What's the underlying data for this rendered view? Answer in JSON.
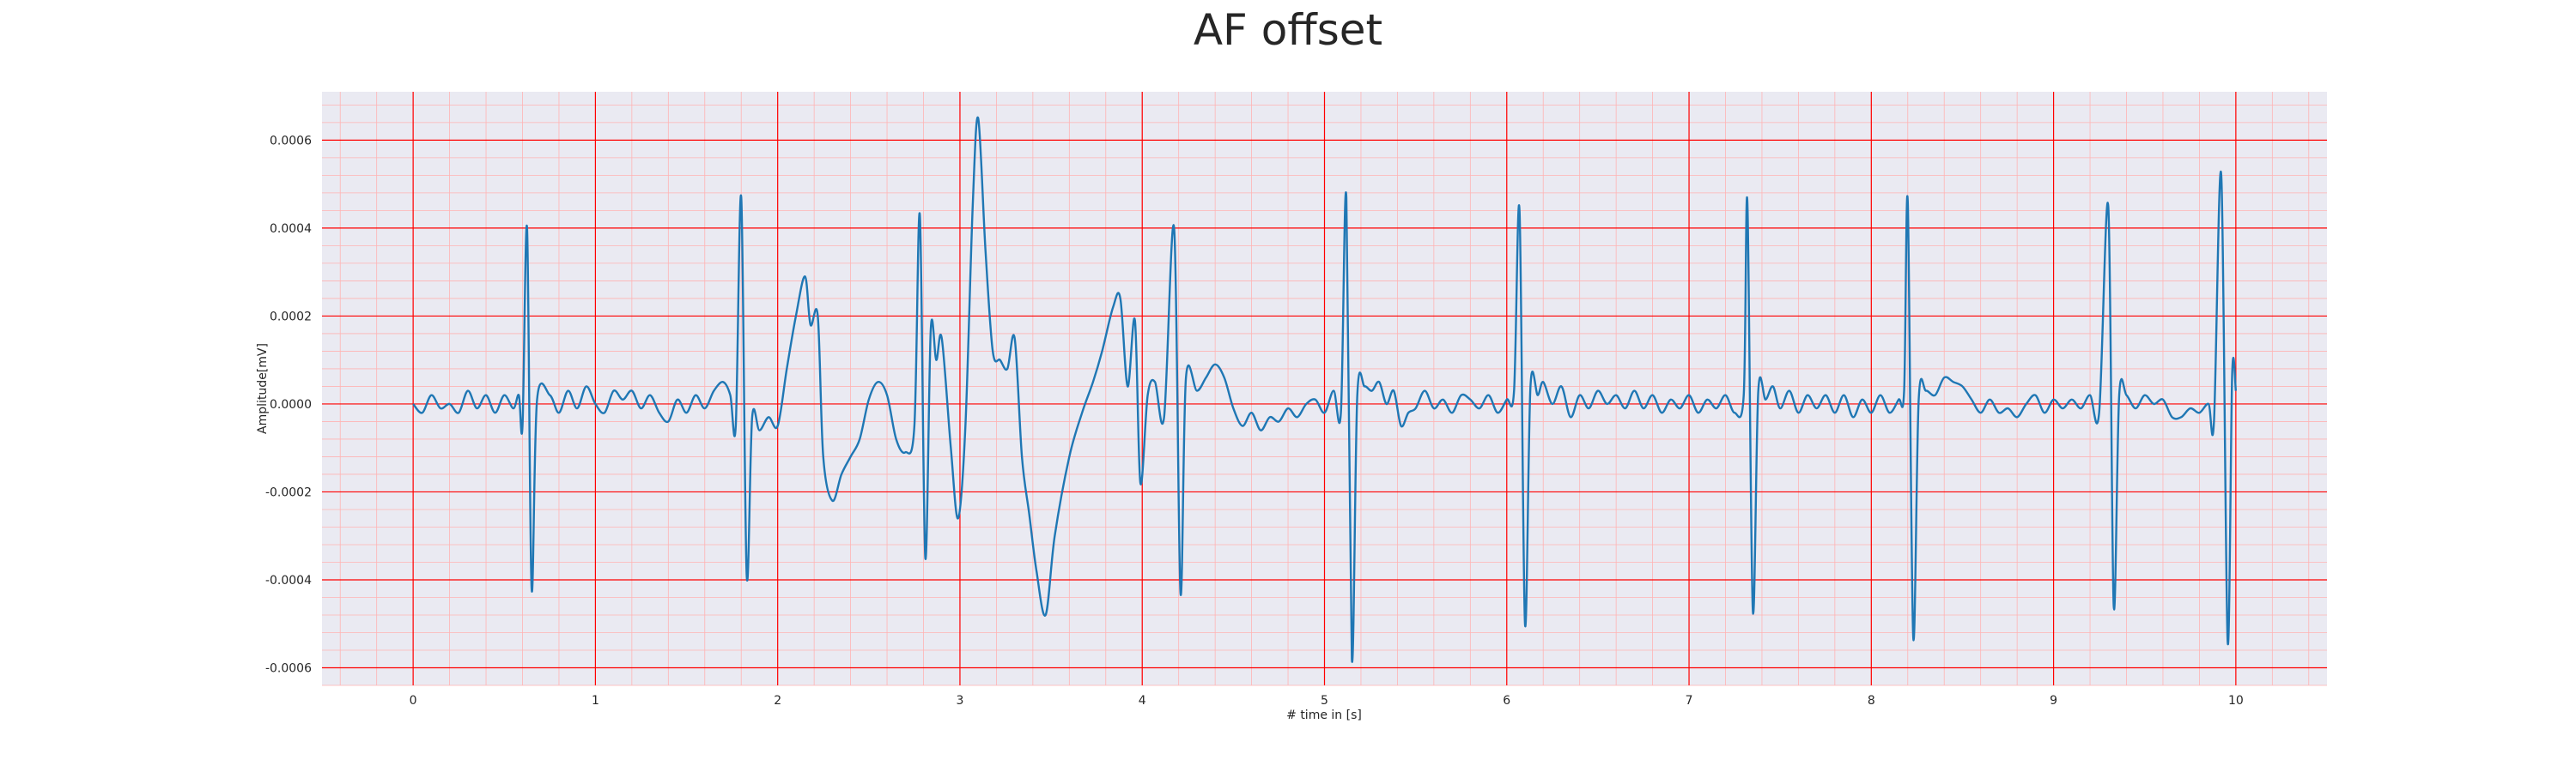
{
  "chart_data": {
    "type": "line",
    "title": "AF offset",
    "xlabel": "# time in [s]",
    "ylabel": "Amplitude[mV]",
    "xlim": [
      -0.5,
      10.5
    ],
    "ylim": [
      -0.00064,
      0.00071
    ],
    "xticks": [
      0,
      1,
      2,
      3,
      4,
      5,
      6,
      7,
      8,
      9,
      10
    ],
    "xtick_labels": [
      "0",
      "1",
      "2",
      "3",
      "4",
      "5",
      "6",
      "7",
      "8",
      "9",
      "10"
    ],
    "yticks": [
      -0.0006,
      -0.0004,
      -0.0002,
      0.0,
      0.0002,
      0.0004,
      0.0006
    ],
    "ytick_labels": [
      "-0.0006",
      "-0.0004",
      "-0.0002",
      "0.0000",
      "0.0002",
      "0.0004",
      "0.0006"
    ],
    "grid": true,
    "colors": {
      "line": "#1f77b4",
      "plot_background": "#eaeaf2",
      "major_grid": "#ff0000",
      "minor_grid": "#ffb3b3"
    },
    "series": [
      {
        "points": [
          [
            0.0,
            0.0
          ],
          [
            0.05,
            -2e-05
          ],
          [
            0.1,
            2e-05
          ],
          [
            0.15,
            -1e-05
          ],
          [
            0.2,
            0.0
          ],
          [
            0.25,
            -2e-05
          ],
          [
            0.3,
            3e-05
          ],
          [
            0.35,
            -1e-05
          ],
          [
            0.4,
            2e-05
          ],
          [
            0.45,
            -2e-05
          ],
          [
            0.5,
            2e-05
          ],
          [
            0.55,
            -1e-05
          ],
          [
            0.58,
            2e-05
          ],
          [
            0.6,
            -5e-05
          ],
          [
            0.625,
            0.0004
          ],
          [
            0.65,
            -0.00042
          ],
          [
            0.68,
            1e-05
          ],
          [
            0.75,
            2e-05
          ],
          [
            0.8,
            -2e-05
          ],
          [
            0.85,
            3e-05
          ],
          [
            0.9,
            -1e-05
          ],
          [
            0.95,
            4e-05
          ],
          [
            1.0,
            0.0
          ],
          [
            1.05,
            -2e-05
          ],
          [
            1.1,
            3e-05
          ],
          [
            1.15,
            1e-05
          ],
          [
            1.2,
            3e-05
          ],
          [
            1.25,
            -1e-05
          ],
          [
            1.3,
            2e-05
          ],
          [
            1.35,
            -2e-05
          ],
          [
            1.4,
            -4e-05
          ],
          [
            1.45,
            1e-05
          ],
          [
            1.5,
            -2e-05
          ],
          [
            1.55,
            2e-05
          ],
          [
            1.6,
            -1e-05
          ],
          [
            1.65,
            3e-05
          ],
          [
            1.7,
            5e-05
          ],
          [
            1.74,
            2e-05
          ],
          [
            1.77,
            -5e-05
          ],
          [
            1.8,
            0.00047
          ],
          [
            1.83,
            -0.00039
          ],
          [
            1.86,
            -3e-05
          ],
          [
            1.9,
            -6e-05
          ],
          [
            1.95,
            -3e-05
          ],
          [
            2.0,
            -5e-05
          ],
          [
            2.05,
            8e-05
          ],
          [
            2.1,
            0.0002
          ],
          [
            2.15,
            0.00029
          ],
          [
            2.18,
            0.00018
          ],
          [
            2.22,
            0.0002
          ],
          [
            2.25,
            -0.00012
          ],
          [
            2.3,
            -0.00022
          ],
          [
            2.35,
            -0.00016
          ],
          [
            2.4,
            -0.00012
          ],
          [
            2.45,
            -8e-05
          ],
          [
            2.5,
            1e-05
          ],
          [
            2.55,
            5e-05
          ],
          [
            2.6,
            2e-05
          ],
          [
            2.65,
            -8e-05
          ],
          [
            2.7,
            -0.00011
          ],
          [
            2.75,
            -5e-05
          ],
          [
            2.78,
            0.00043
          ],
          [
            2.81,
            -0.00035
          ],
          [
            2.84,
            0.00017
          ],
          [
            2.87,
            0.0001
          ],
          [
            2.9,
            0.00015
          ],
          [
            2.95,
            -0.0001
          ],
          [
            2.99,
            -0.00026
          ],
          [
            3.03,
            -5e-05
          ],
          [
            3.07,
            0.00045
          ],
          [
            3.1,
            0.00065
          ],
          [
            3.14,
            0.00035
          ],
          [
            3.18,
            0.00012
          ],
          [
            3.22,
            0.0001
          ],
          [
            3.26,
            8e-05
          ],
          [
            3.3,
            0.00015
          ],
          [
            3.34,
            -0.00012
          ],
          [
            3.38,
            -0.00025
          ],
          [
            3.42,
            -0.00038
          ],
          [
            3.47,
            -0.00048
          ],
          [
            3.52,
            -0.0003
          ],
          [
            3.6,
            -0.00012
          ],
          [
            3.67,
            -2e-05
          ],
          [
            3.73,
            5e-05
          ],
          [
            3.78,
            0.00012
          ],
          [
            3.84,
            0.00022
          ],
          [
            3.88,
            0.00024
          ],
          [
            3.92,
            4e-05
          ],
          [
            3.96,
            0.00019
          ],
          [
            3.99,
            -0.00018
          ],
          [
            4.03,
            2e-05
          ],
          [
            4.07,
            5e-05
          ],
          [
            4.12,
            -3e-05
          ],
          [
            4.175,
            0.0004
          ],
          [
            4.21,
            -0.00043
          ],
          [
            4.24,
            6e-05
          ],
          [
            4.3,
            3e-05
          ],
          [
            4.35,
            6e-05
          ],
          [
            4.4,
            9e-05
          ],
          [
            4.45,
            6e-05
          ],
          [
            4.5,
            -1e-05
          ],
          [
            4.55,
            -5e-05
          ],
          [
            4.6,
            -2e-05
          ],
          [
            4.65,
            -6e-05
          ],
          [
            4.7,
            -3e-05
          ],
          [
            4.75,
            -4e-05
          ],
          [
            4.8,
            -1e-05
          ],
          [
            4.85,
            -3e-05
          ],
          [
            4.9,
            0.0
          ],
          [
            4.95,
            1e-05
          ],
          [
            5.0,
            -2e-05
          ],
          [
            5.05,
            3e-05
          ],
          [
            5.09,
            -2e-05
          ],
          [
            5.12,
            0.00047
          ],
          [
            5.15,
            -0.00058
          ],
          [
            5.18,
            2e-05
          ],
          [
            5.22,
            4e-05
          ],
          [
            5.26,
            3e-05
          ],
          [
            5.3,
            5e-05
          ],
          [
            5.34,
            0.0
          ],
          [
            5.38,
            3e-05
          ],
          [
            5.42,
            -5e-05
          ],
          [
            5.46,
            -2e-05
          ],
          [
            5.5,
            -1e-05
          ],
          [
            5.55,
            3e-05
          ],
          [
            5.6,
            -1e-05
          ],
          [
            5.65,
            1e-05
          ],
          [
            5.7,
            -2e-05
          ],
          [
            5.75,
            2e-05
          ],
          [
            5.8,
            1e-05
          ],
          [
            5.85,
            -1e-05
          ],
          [
            5.9,
            2e-05
          ],
          [
            5.95,
            -2e-05
          ],
          [
            6.0,
            1e-05
          ],
          [
            6.04,
            3e-05
          ],
          [
            6.07,
            0.00044
          ],
          [
            6.1,
            -0.0005
          ],
          [
            6.13,
            4e-05
          ],
          [
            6.17,
            2e-05
          ],
          [
            6.2,
            5e-05
          ],
          [
            6.25,
            0.0
          ],
          [
            6.3,
            4e-05
          ],
          [
            6.35,
            -3e-05
          ],
          [
            6.4,
            2e-05
          ],
          [
            6.45,
            -1e-05
          ],
          [
            6.5,
            3e-05
          ],
          [
            6.55,
            0.0
          ],
          [
            6.6,
            2e-05
          ],
          [
            6.65,
            -1e-05
          ],
          [
            6.7,
            3e-05
          ],
          [
            6.75,
            -1e-05
          ],
          [
            6.8,
            2e-05
          ],
          [
            6.85,
            -2e-05
          ],
          [
            6.9,
            1e-05
          ],
          [
            6.95,
            -1e-05
          ],
          [
            7.0,
            2e-05
          ],
          [
            7.05,
            -2e-05
          ],
          [
            7.1,
            1e-05
          ],
          [
            7.15,
            -1e-05
          ],
          [
            7.2,
            2e-05
          ],
          [
            7.25,
            -2e-05
          ],
          [
            7.3,
            2e-05
          ],
          [
            7.32,
            0.00046
          ],
          [
            7.35,
            -0.00047
          ],
          [
            7.38,
            3e-05
          ],
          [
            7.42,
            1e-05
          ],
          [
            7.46,
            4e-05
          ],
          [
            7.5,
            -1e-05
          ],
          [
            7.55,
            3e-05
          ],
          [
            7.6,
            -2e-05
          ],
          [
            7.65,
            2e-05
          ],
          [
            7.7,
            -1e-05
          ],
          [
            7.75,
            2e-05
          ],
          [
            7.8,
            -2e-05
          ],
          [
            7.85,
            2e-05
          ],
          [
            7.9,
            -3e-05
          ],
          [
            7.95,
            1e-05
          ],
          [
            8.0,
            -2e-05
          ],
          [
            8.05,
            2e-05
          ],
          [
            8.1,
            -2e-05
          ],
          [
            8.15,
            1e-05
          ],
          [
            8.18,
            3e-05
          ],
          [
            8.2,
            0.00046
          ],
          [
            8.23,
            -0.00053
          ],
          [
            8.26,
            1e-05
          ],
          [
            8.3,
            3e-05
          ],
          [
            8.35,
            2e-05
          ],
          [
            8.4,
            6e-05
          ],
          [
            8.45,
            5e-05
          ],
          [
            8.5,
            4e-05
          ],
          [
            8.55,
            1e-05
          ],
          [
            8.6,
            -2e-05
          ],
          [
            8.65,
            1e-05
          ],
          [
            8.7,
            -2e-05
          ],
          [
            8.75,
            -1e-05
          ],
          [
            8.8,
            -3e-05
          ],
          [
            8.85,
            0.0
          ],
          [
            8.9,
            2e-05
          ],
          [
            8.95,
            -2e-05
          ],
          [
            9.0,
            1e-05
          ],
          [
            9.05,
            -1e-05
          ],
          [
            9.1,
            1e-05
          ],
          [
            9.15,
            -1e-05
          ],
          [
            9.2,
            2e-05
          ],
          [
            9.25,
            -2e-05
          ],
          [
            9.3,
            0.00045
          ],
          [
            9.33,
            -0.00046
          ],
          [
            9.36,
            2e-05
          ],
          [
            9.4,
            2e-05
          ],
          [
            9.45,
            -1e-05
          ],
          [
            9.5,
            2e-05
          ],
          [
            9.55,
            0.0
          ],
          [
            9.6,
            1e-05
          ],
          [
            9.65,
            -3e-05
          ],
          [
            9.7,
            -3e-05
          ],
          [
            9.75,
            -1e-05
          ],
          [
            9.8,
            -2e-05
          ],
          [
            9.85,
            0.0
          ],
          [
            9.88,
            -4e-05
          ],
          [
            9.92,
            0.00052
          ],
          [
            9.955,
            -0.00054
          ],
          [
            9.98,
            7e-05
          ],
          [
            10.0,
            3e-05
          ]
        ]
      }
    ]
  }
}
